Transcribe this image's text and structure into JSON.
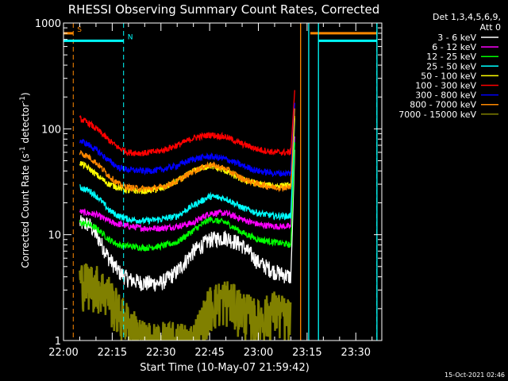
{
  "chart_data": {
    "type": "line",
    "title": "RHESSI Observing Summary Count Rates, Corrected",
    "xlabel": "Start Time (10-May-07 21:59:42)",
    "ylabel_parts": {
      "main": "Corrected Count Rate (s",
      "sup1": "-1",
      "mid": " detector",
      "sup2": "-1",
      "end": ")"
    },
    "footer": "15-Oct-2021 02:46",
    "x_units": "minutes after 22:00 UT",
    "xlim": [
      0,
      98
    ],
    "ylim": [
      1,
      1000
    ],
    "y_scale": "log",
    "x_ticks": [
      {
        "v": 0,
        "label": "22:00"
      },
      {
        "v": 15,
        "label": "22:15"
      },
      {
        "v": 30,
        "label": "22:30"
      },
      {
        "v": 45,
        "label": "22:45"
      },
      {
        "v": 60,
        "label": "23:00"
      },
      {
        "v": 75,
        "label": "23:15"
      },
      {
        "v": 90,
        "label": "23:30"
      }
    ],
    "y_ticks": [
      {
        "v": 1,
        "label": "1"
      },
      {
        "v": 10,
        "label": "10"
      },
      {
        "v": 100,
        "label": "100"
      },
      {
        "v": 1000,
        "label": "1000"
      }
    ],
    "legend_header": [
      "Det 1,3,4,5,6,9,",
      "Att 0"
    ],
    "legend_position": "right",
    "series": [
      {
        "name": "3 - 6 keV",
        "color": "#ffffff",
        "start": 5,
        "peak_t": 70,
        "peak_v": 80,
        "points": [
          [
            5,
            13
          ],
          [
            8,
            12.5
          ],
          [
            11,
            9
          ],
          [
            14,
            6
          ],
          [
            17,
            4.5
          ],
          [
            20,
            3.8
          ],
          [
            25,
            3.5
          ],
          [
            30,
            3.5
          ],
          [
            35,
            4.5
          ],
          [
            40,
            7
          ],
          [
            45,
            9
          ],
          [
            50,
            9.5
          ],
          [
            55,
            8
          ],
          [
            60,
            5.5
          ],
          [
            65,
            4.5
          ],
          [
            70,
            4
          ]
        ]
      },
      {
        "name": "6 - 12 keV",
        "color": "#ff00ff",
        "start": 5,
        "peak_t": 70,
        "peak_v": 100,
        "points": [
          [
            5,
            16.5
          ],
          [
            10,
            15.5
          ],
          [
            15,
            13
          ],
          [
            20,
            12
          ],
          [
            25,
            11.5
          ],
          [
            30,
            11.5
          ],
          [
            35,
            12
          ],
          [
            40,
            13
          ],
          [
            45,
            16
          ],
          [
            50,
            16
          ],
          [
            55,
            14
          ],
          [
            60,
            12.5
          ],
          [
            65,
            12
          ],
          [
            70,
            12
          ]
        ]
      },
      {
        "name": "12 - 25 keV",
        "color": "#00ff00",
        "start": 5,
        "peak_t": 70,
        "peak_v": 90,
        "points": [
          [
            5,
            13
          ],
          [
            8,
            12.5
          ],
          [
            11,
            11
          ],
          [
            14,
            9
          ],
          [
            17,
            8
          ],
          [
            20,
            7.8
          ],
          [
            25,
            7.5
          ],
          [
            30,
            7.8
          ],
          [
            35,
            8.5
          ],
          [
            40,
            11
          ],
          [
            45,
            14
          ],
          [
            50,
            13
          ],
          [
            55,
            10.5
          ],
          [
            60,
            9
          ],
          [
            65,
            8.5
          ],
          [
            70,
            8
          ]
        ]
      },
      {
        "name": "25 - 50 keV",
        "color": "#00ffff",
        "start": 5,
        "peak_t": 70,
        "peak_v": 150,
        "points": [
          [
            5,
            28
          ],
          [
            8,
            26
          ],
          [
            11,
            22
          ],
          [
            14,
            17
          ],
          [
            17,
            15
          ],
          [
            20,
            14
          ],
          [
            25,
            13.5
          ],
          [
            30,
            14
          ],
          [
            35,
            15
          ],
          [
            40,
            19
          ],
          [
            45,
            23
          ],
          [
            50,
            22
          ],
          [
            55,
            18
          ],
          [
            60,
            16
          ],
          [
            65,
            15
          ],
          [
            70,
            15
          ]
        ]
      },
      {
        "name": "50 - 100 keV",
        "color": "#ffff00",
        "start": 5,
        "peak_t": 70,
        "peak_v": 150,
        "points": [
          [
            5,
            48
          ],
          [
            8,
            42
          ],
          [
            11,
            35
          ],
          [
            14,
            30
          ],
          [
            17,
            28
          ],
          [
            20,
            26
          ],
          [
            25,
            26
          ],
          [
            30,
            27
          ],
          [
            35,
            32
          ],
          [
            40,
            40
          ],
          [
            45,
            45
          ],
          [
            50,
            40
          ],
          [
            55,
            33
          ],
          [
            60,
            30
          ],
          [
            65,
            29
          ],
          [
            70,
            29
          ]
        ]
      },
      {
        "name": "100 - 300 keV",
        "color": "#ff0000",
        "start": 5,
        "peak_t": 70,
        "peak_v": 260,
        "points": [
          [
            5,
            125
          ],
          [
            8,
            112
          ],
          [
            11,
            95
          ],
          [
            14,
            78
          ],
          [
            17,
            66
          ],
          [
            20,
            60
          ],
          [
            25,
            59
          ],
          [
            30,
            62
          ],
          [
            35,
            70
          ],
          [
            40,
            82
          ],
          [
            45,
            88
          ],
          [
            50,
            84
          ],
          [
            55,
            72
          ],
          [
            60,
            64
          ],
          [
            65,
            60
          ],
          [
            70,
            60
          ]
        ]
      },
      {
        "name": "300 - 800 keV",
        "color": "#0000ff",
        "start": 5,
        "peak_t": 70,
        "peak_v": 200,
        "points": [
          [
            5,
            78
          ],
          [
            8,
            70
          ],
          [
            11,
            60
          ],
          [
            14,
            50
          ],
          [
            17,
            43
          ],
          [
            20,
            41
          ],
          [
            25,
            40
          ],
          [
            30,
            41
          ],
          [
            35,
            45
          ],
          [
            40,
            52
          ],
          [
            45,
            55
          ],
          [
            50,
            52
          ],
          [
            55,
            45
          ],
          [
            60,
            40
          ],
          [
            65,
            38
          ],
          [
            70,
            38
          ]
        ]
      },
      {
        "name": "800 - 7000 keV",
        "color": "#ff8800",
        "start": 5,
        "peak_t": 70,
        "peak_v": 180,
        "points": [
          [
            5,
            60
          ],
          [
            8,
            54
          ],
          [
            11,
            45
          ],
          [
            14,
            36
          ],
          [
            17,
            30
          ],
          [
            20,
            28
          ],
          [
            25,
            27
          ],
          [
            30,
            28
          ],
          [
            35,
            32
          ],
          [
            40,
            40
          ],
          [
            45,
            46
          ],
          [
            50,
            42
          ],
          [
            55,
            34
          ],
          [
            60,
            30
          ],
          [
            65,
            28
          ],
          [
            70,
            28
          ]
        ]
      },
      {
        "name": "7000 - 15000 keV",
        "color": "#808000",
        "start": 5,
        "points": [
          [
            5,
            3.8
          ],
          [
            10,
            3.5
          ],
          [
            14,
            2.8
          ],
          [
            17,
            1.9
          ],
          [
            20,
            1.5
          ],
          [
            25,
            1
          ],
          [
            30,
            1
          ],
          [
            35,
            1
          ],
          [
            40,
            1
          ],
          [
            45,
            2.2
          ],
          [
            50,
            2.6
          ],
          [
            55,
            2
          ],
          [
            60,
            1.6
          ],
          [
            65,
            2
          ],
          [
            70,
            1.6
          ]
        ]
      }
    ],
    "markers": [
      {
        "label": "S",
        "color": "#ff8800",
        "x_start": 0,
        "x_end": 3,
        "y_level": 800,
        "vline": 3
      },
      {
        "label": "N",
        "color": "#00ffff",
        "x_start": 0,
        "x_end": 18.5,
        "y_level": 680,
        "vline": 18.5
      },
      {
        "label": "",
        "color": "#ff8800",
        "x_start": 76,
        "x_end": 96.5,
        "y_level": 800,
        "vline": 96.5
      },
      {
        "label": "",
        "color": "#00ffff",
        "x_start": 78.5,
        "x_end": 96.5,
        "y_level": 680,
        "vline": 96.5
      }
    ],
    "solid_vlines": [
      {
        "x": 73,
        "color": "#ff8800"
      },
      {
        "x": 75.5,
        "color": "#00ffff"
      },
      {
        "x": 78.5,
        "color": "#00ffff"
      },
      {
        "x": 96.5,
        "color": "#00ffff"
      }
    ]
  }
}
